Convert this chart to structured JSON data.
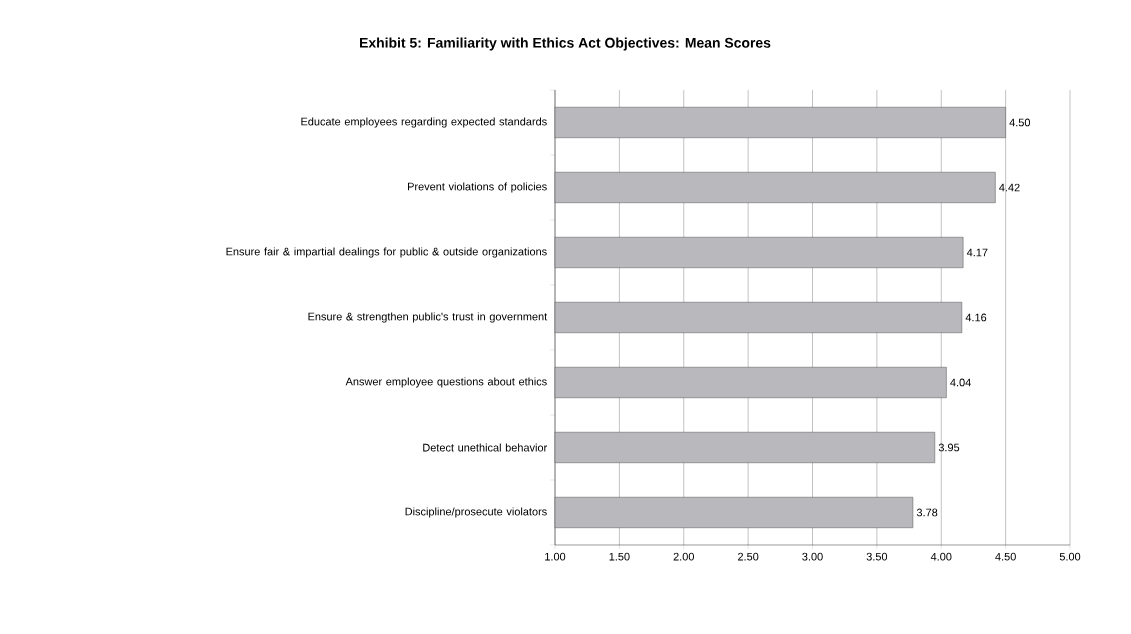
{
  "chart_data": {
    "type": "bar",
    "orientation": "horizontal",
    "title": "Exhibit 5: Familiarity with Ethics Act Objectives: Mean Scores",
    "categories": [
      "Educate employees regarding expected standards",
      "Prevent violations of policies",
      "Ensure fair & impartial dealings for public & outside organizations",
      "Ensure & strengthen public's trust in government",
      "Answer employee questions about ethics",
      "Detect unethical behavior",
      "Discipline/prosecute violators"
    ],
    "values": [
      4.5,
      4.42,
      4.17,
      4.16,
      4.04,
      3.95,
      3.78
    ],
    "value_labels": [
      "4.50",
      "4.42",
      "4.17",
      "4.16",
      "4.04",
      "3.95",
      "3.78"
    ],
    "color": "#b9b9bd",
    "xlim": [
      1,
      5
    ],
    "xticks": [
      {
        "value": 1,
        "label": "1.00"
      },
      {
        "value": 1.5,
        "label": "1.50"
      },
      {
        "value": 2,
        "label": "2.00"
      },
      {
        "value": 2.5,
        "label": "2.50"
      },
      {
        "value": 3,
        "label": "3.00"
      },
      {
        "value": 3.5,
        "label": "3.50"
      },
      {
        "value": 4,
        "label": "4.00"
      },
      {
        "value": 4.5,
        "label": "4.50"
      },
      {
        "value": 5,
        "label": "5.00"
      }
    ],
    "grid": "x"
  }
}
